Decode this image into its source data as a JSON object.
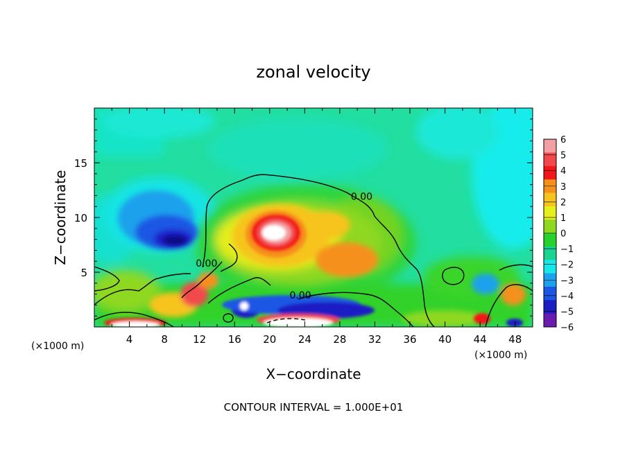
{
  "chart_data": {
    "type": "heatmap",
    "title": "zonal velocity",
    "xlabel": "X−coordinate",
    "ylabel": "Z−coordinate",
    "x_unit_left": "(×1000 m)",
    "x_unit_right": "(×1000 m)",
    "footer": "CONTOUR INTERVAL = 1.000E+01",
    "xlim": [
      0,
      50
    ],
    "ylim": [
      0,
      20
    ],
    "x_ticks": [
      4,
      8,
      12,
      16,
      20,
      24,
      28,
      32,
      36,
      40,
      44,
      48
    ],
    "y_ticks": [
      5,
      10,
      15
    ],
    "colorbar": {
      "levels": [
        6,
        5,
        4,
        3,
        2,
        1,
        0,
        -1,
        -2,
        -3,
        -4,
        -5,
        -6
      ],
      "colors": [
        "#f39ea2",
        "#f24a4c",
        "#f31818",
        "#f6901c",
        "#f6c41c",
        "#e6ee1c",
        "#8fd820",
        "#27d22c",
        "#1ad392",
        "#15e8e8",
        "#1ea1ec",
        "#1c56e4",
        "#1d1dc4",
        "#6b1cae"
      ]
    },
    "contours": [
      {
        "label": "0.00",
        "label_x": 30.5,
        "label_y": 11.6
      },
      {
        "label": "0.00",
        "label_x": 12.8,
        "label_y": 5.5
      },
      {
        "label": "0.00",
        "label_x": 23.5,
        "label_y": 2.6
      }
    ],
    "features": {
      "max_core": {
        "x": 20.5,
        "y": 8.7,
        "value": 6
      },
      "min_core": {
        "x": 8.5,
        "y": 8.2,
        "value": -6
      }
    }
  }
}
